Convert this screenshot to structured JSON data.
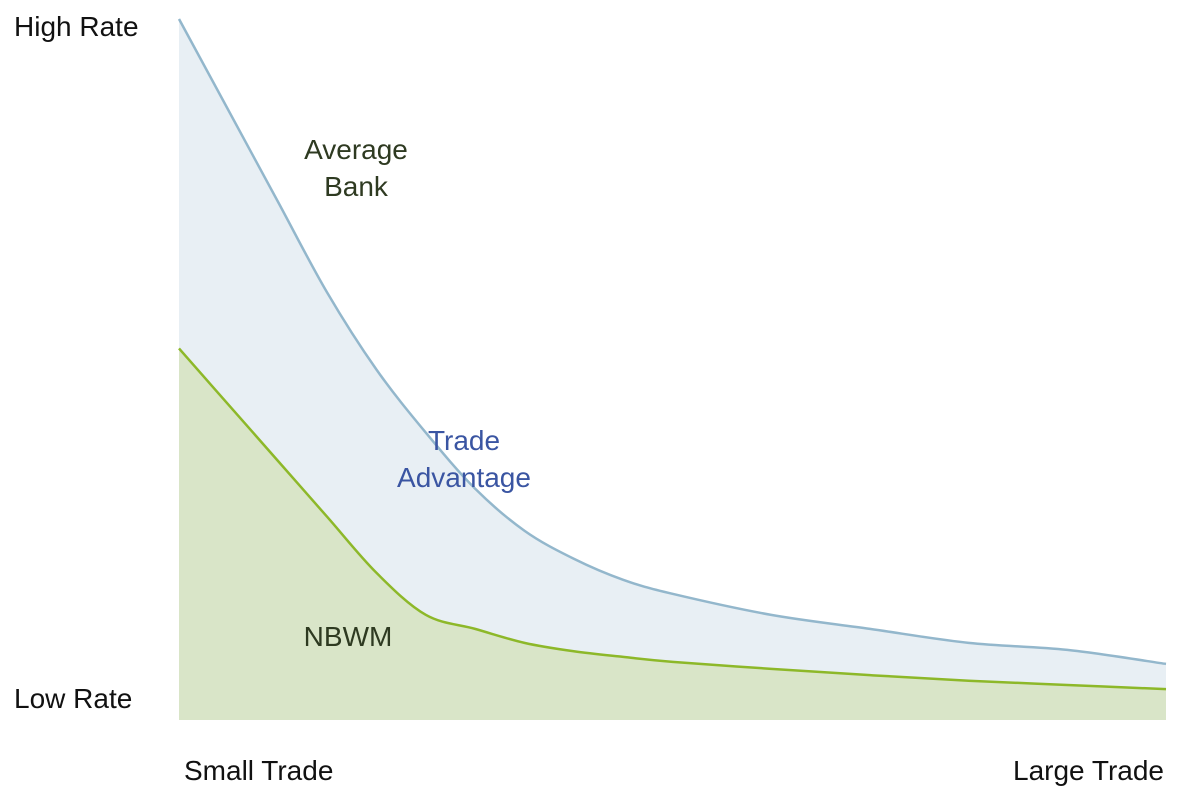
{
  "chart_data": {
    "type": "area",
    "title": "",
    "xlabel": "",
    "ylabel": "",
    "y_axis_labels": {
      "high": "High Rate",
      "low": "Low Rate"
    },
    "x_axis_labels": {
      "left": "Small Trade",
      "right": "Large Trade"
    },
    "x": [
      0,
      0.05,
      0.1,
      0.15,
      0.2,
      0.25,
      0.3,
      0.35,
      0.4,
      0.45,
      0.5,
      0.6,
      0.7,
      0.8,
      0.9,
      1.0
    ],
    "ylim": [
      0,
      1
    ],
    "grid": false,
    "series": [
      {
        "name": "",
        "values": [
          1.0,
          0.87,
          0.74,
          0.61,
          0.5,
          0.41,
          0.33,
          0.27,
          0.23,
          0.2,
          0.18,
          0.15,
          0.13,
          0.11,
          0.1,
          0.08
        ],
        "line_color": "#93b7cc",
        "fill_color": "#e8eff4"
      },
      {
        "name": "",
        "values": [
          0.53,
          0.45,
          0.37,
          0.29,
          0.21,
          0.15,
          0.13,
          0.11,
          0.098,
          0.09,
          0.083,
          0.073,
          0.064,
          0.056,
          0.05,
          0.044
        ],
        "line_color": "#8db829",
        "fill_color": "#d9e5c8"
      }
    ],
    "annotations": [
      {
        "lines": [
          "Average",
          "Bank"
        ],
        "color": "#2e3a21"
      },
      {
        "lines": [
          "Trade",
          "Advantage"
        ],
        "color": "#3a55a2"
      },
      {
        "lines": [
          "NBWM"
        ],
        "color": "#2e3a21"
      }
    ]
  }
}
